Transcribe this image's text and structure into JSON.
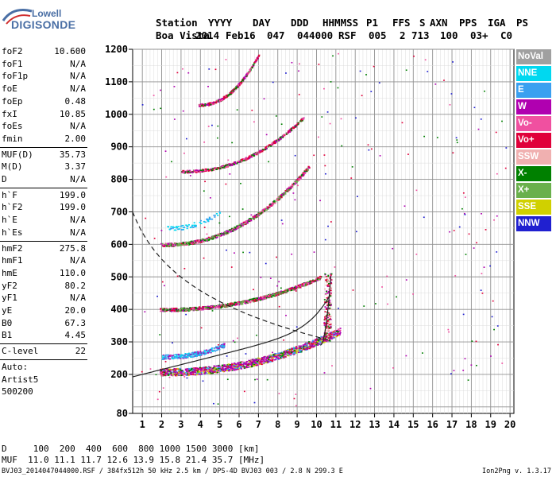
{
  "logo": {
    "line1": "Lowell",
    "line2": "DIGISONDE"
  },
  "header": {
    "labels": [
      "Station",
      "YYYY",
      "DAY",
      "DDD",
      "HHMMSS",
      "P1",
      "FFS",
      "S",
      "AXN",
      "PPS",
      "IGA",
      "PS"
    ],
    "values": [
      "Boa Vista",
      "2014",
      "Feb16",
      "047",
      "044000",
      "RSF",
      "005",
      "2",
      "713",
      "100",
      "03+",
      "C0"
    ]
  },
  "params": {
    "group1": [
      {
        "k": "foF2",
        "v": "10.600"
      },
      {
        "k": "foF1",
        "v": "N/A"
      },
      {
        "k": "foF1p",
        "v": "N/A"
      },
      {
        "k": "foE",
        "v": "N/A"
      },
      {
        "k": "foEp",
        "v": "0.48"
      },
      {
        "k": "fxI",
        "v": "10.85"
      },
      {
        "k": "foEs",
        "v": "N/A"
      },
      {
        "k": "fmin",
        "v": "2.00"
      }
    ],
    "group2": [
      {
        "k": "MUF(D)",
        "v": "35.73"
      },
      {
        "k": "M(D)",
        "v": "3.37"
      },
      {
        "k": "D",
        "v": "N/A"
      }
    ],
    "group3": [
      {
        "k": "h`F",
        "v": "199.0"
      },
      {
        "k": "h`F2",
        "v": "199.0"
      },
      {
        "k": "h`E",
        "v": "N/A"
      },
      {
        "k": "h`Es",
        "v": "N/A"
      }
    ],
    "group4": [
      {
        "k": "hmF2",
        "v": "275.8"
      },
      {
        "k": "hmF1",
        "v": "N/A"
      },
      {
        "k": "hmE",
        "v": "110.0"
      },
      {
        "k": "yF2",
        "v": "80.2"
      },
      {
        "k": "yF1",
        "v": "N/A"
      },
      {
        "k": "yE",
        "v": "20.0"
      },
      {
        "k": "B0",
        "v": "67.3"
      },
      {
        "k": "B1",
        "v": "4.45"
      }
    ],
    "clevel": {
      "k": "C-level",
      "v": "22"
    },
    "auto": [
      "Auto:",
      "Artist5",
      "500200"
    ]
  },
  "legend": [
    {
      "label": "NoVal",
      "color": "#a0a0a0"
    },
    {
      "label": "NNE",
      "color": "#00d8f0"
    },
    {
      "label": "E",
      "color": "#3aa0f0"
    },
    {
      "label": "W",
      "color": "#b000b0"
    },
    {
      "label": "Vo-",
      "color": "#f050a0"
    },
    {
      "label": "Vo+",
      "color": "#e0003a"
    },
    {
      "label": "SSW",
      "color": "#f0b0b0"
    },
    {
      "label": "X-",
      "color": "#008000"
    },
    {
      "label": "X+",
      "color": "#6ab04c"
    },
    {
      "label": "SSE",
      "color": "#d0d000"
    },
    {
      "label": "NNW",
      "color": "#2020d0"
    }
  ],
  "muf": {
    "line1": "D     100  200  400  600  800 1000 1500 3000 [km]",
    "line2": "MUF  11.0 11.1 11.7 12.6 13.9 15.8 21.4 35.7 [MHz]"
  },
  "footer": "BVJ03_2014047044000.RSF / 384fx512h 50 kHz 2.5 km / DPS-4D BVJ03 003 / 2.8 N 299.3 E",
  "version": "Ion2Png v. 1.3.17",
  "chart_data": {
    "type": "scatter",
    "xlim": [
      0.5,
      20.2
    ],
    "ylim": [
      80,
      1200
    ],
    "xticks": [
      1,
      2,
      3,
      4,
      5,
      6,
      7,
      8,
      9,
      10,
      11,
      12,
      13,
      14,
      15,
      16,
      17,
      18,
      19,
      20
    ],
    "yticks": [
      80,
      200,
      300,
      400,
      500,
      600,
      700,
      800,
      900,
      1000,
      1100,
      1200
    ],
    "grid": true,
    "series": [
      {
        "name": "W",
        "color": "#b000b0",
        "x": [
          2.0,
          2.5,
          3.0,
          4.0,
          5.0,
          6.0,
          7.0,
          8.0,
          9.0,
          10.0,
          10.5,
          11.0,
          2.2,
          4.0,
          6.0,
          8.0,
          9.0,
          10.0
        ],
        "y": [
          215,
          225,
          235,
          245,
          250,
          255,
          265,
          275,
          290,
          305,
          320,
          330,
          400,
          410,
          420,
          440,
          460,
          490
        ]
      },
      {
        "name": "Vo+",
        "color": "#e0003a",
        "x": [
          2.0,
          3.0,
          4.0,
          5.0,
          6.0,
          7.0,
          8.0,
          8.5,
          9.0,
          9.5,
          2.0,
          3.0,
          4.0,
          5.0,
          6.0,
          7.0,
          8.0,
          9.0
        ],
        "y": [
          405,
          410,
          415,
          425,
          435,
          450,
          470,
          485,
          505,
          535,
          605,
          615,
          630,
          650,
          675,
          700,
          740,
          790
        ]
      },
      {
        "name": "Vo-",
        "color": "#f050a0",
        "x": [
          3.0,
          4.0,
          5.0,
          6.0,
          7.0,
          8.0,
          9.0,
          4.0,
          5.0,
          6.0,
          7.0,
          8.0,
          9.0
        ],
        "y": [
          830,
          845,
          860,
          880,
          905,
          935,
          975,
          1045,
          1070,
          1100,
          1130,
          1160,
          1190
        ]
      },
      {
        "name": "X-",
        "color": "#008000",
        "x": [
          2.5,
          3.5,
          5.0,
          6.5,
          8.0,
          9.5,
          10.5,
          5.0,
          7.0,
          9.0,
          10.0
        ],
        "y": [
          210,
          215,
          230,
          245,
          260,
          285,
          300,
          440,
          470,
          530,
          600
        ]
      },
      {
        "name": "X+",
        "color": "#6ab04c",
        "x": [
          4.0,
          6.0,
          8.0,
          9.5
        ],
        "y": [
          650,
          690,
          760,
          820
        ]
      },
      {
        "name": "E",
        "color": "#3aa0f0",
        "x": [
          2.0,
          2.5,
          3.0,
          3.5,
          4.0,
          4.5,
          5.0,
          2.5,
          3.0,
          3.5
        ],
        "y": [
          270,
          275,
          265,
          280,
          270,
          260,
          275,
          680,
          690,
          670
        ]
      },
      {
        "name": "SSW",
        "color": "#f0b0b0",
        "x": [
          9.5,
          10.0,
          10.5
        ],
        "y": [
          390,
          400,
          380
        ]
      },
      {
        "name": "SSE",
        "color": "#d0d000",
        "x": [
          5.0,
          7.0,
          9.0
        ],
        "y": [
          235,
          250,
          270
        ]
      },
      {
        "name": "NNW",
        "color": "#2020d0",
        "x": [
          6.0,
          9.0,
          14.5
        ],
        "y": [
          300,
          420,
          95
        ]
      },
      {
        "name": "NoVal",
        "color": "#a0a0a0",
        "x": [
          12.0,
          14.0,
          16.0
        ],
        "y": [
          300,
          450,
          600
        ]
      }
    ]
  }
}
